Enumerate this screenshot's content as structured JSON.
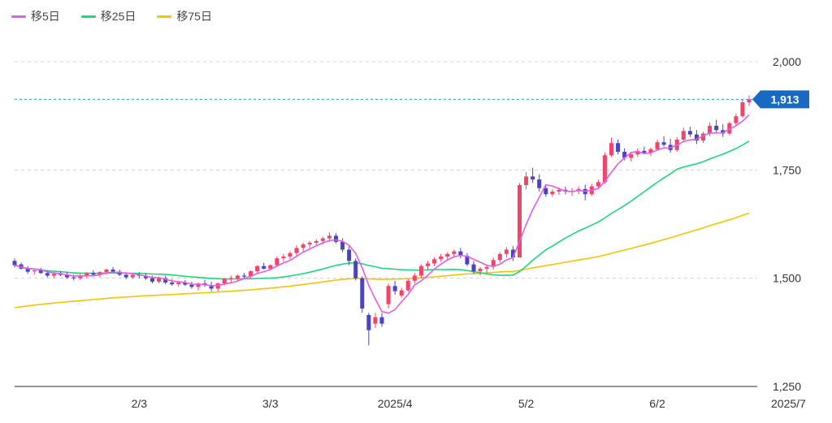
{
  "legend": [
    {
      "label": "移5日",
      "color": "#e55ce6"
    },
    {
      "label": "移25日",
      "color": "#1dd67a"
    },
    {
      "label": "移75日",
      "color": "#f3c500"
    }
  ],
  "chart_data": {
    "type": "candlestick",
    "title": "",
    "y_ticks": [
      "2,000",
      "1,750",
      "1,500",
      "1,250"
    ],
    "y_tick_values": [
      2000,
      1750,
      1500,
      1250
    ],
    "ylim": [
      1250,
      2000
    ],
    "x_tick_labels": [
      "2/3",
      "3/3",
      "2025/4",
      "5/2",
      "6/2",
      "2025/7"
    ],
    "x_tick_index": [
      19,
      39,
      58,
      78,
      98,
      118
    ],
    "last_price": 1913,
    "last_price_label": "1,913",
    "colors": {
      "up": "#f0446a",
      "down": "#4b43c5",
      "ma5": "#e55ce6",
      "ma25": "#1dd67a",
      "ma75": "#f3c500",
      "price_line": "#3a8dd0",
      "price_badge": "#1769c2"
    },
    "candles": [
      [
        1540,
        1545,
        1525,
        1530
      ],
      [
        1532,
        1536,
        1520,
        1522
      ],
      [
        1522,
        1528,
        1510,
        1515
      ],
      [
        1516,
        1522,
        1508,
        1518
      ],
      [
        1518,
        1524,
        1510,
        1512
      ],
      [
        1512,
        1518,
        1502,
        1506
      ],
      [
        1506,
        1514,
        1500,
        1510
      ],
      [
        1510,
        1516,
        1505,
        1508
      ],
      [
        1508,
        1514,
        1498,
        1502
      ],
      [
        1502,
        1508,
        1495,
        1500
      ],
      [
        1500,
        1510,
        1496,
        1506
      ],
      [
        1506,
        1514,
        1500,
        1512
      ],
      [
        1512,
        1518,
        1505,
        1508
      ],
      [
        1508,
        1516,
        1502,
        1514
      ],
      [
        1514,
        1522,
        1508,
        1520
      ],
      [
        1520,
        1526,
        1512,
        1515
      ],
      [
        1515,
        1520,
        1505,
        1508
      ],
      [
        1508,
        1514,
        1498,
        1502
      ],
      [
        1502,
        1512,
        1498,
        1508
      ],
      [
        1508,
        1514,
        1500,
        1506
      ],
      [
        1506,
        1512,
        1496,
        1500
      ],
      [
        1500,
        1506,
        1488,
        1492
      ],
      [
        1492,
        1504,
        1488,
        1500
      ],
      [
        1500,
        1506,
        1486,
        1490
      ],
      [
        1490,
        1498,
        1482,
        1486
      ],
      [
        1486,
        1494,
        1480,
        1490
      ],
      [
        1490,
        1496,
        1482,
        1485
      ],
      [
        1485,
        1492,
        1476,
        1480
      ],
      [
        1480,
        1490,
        1472,
        1488
      ],
      [
        1488,
        1496,
        1480,
        1484
      ],
      [
        1484,
        1492,
        1470,
        1476
      ],
      [
        1476,
        1490,
        1470,
        1488
      ],
      [
        1488,
        1500,
        1484,
        1498
      ],
      [
        1498,
        1506,
        1490,
        1500
      ],
      [
        1500,
        1508,
        1494,
        1506
      ],
      [
        1506,
        1512,
        1498,
        1504
      ],
      [
        1504,
        1518,
        1500,
        1516
      ],
      [
        1516,
        1530,
        1512,
        1528
      ],
      [
        1528,
        1536,
        1520,
        1522
      ],
      [
        1522,
        1532,
        1518,
        1530
      ],
      [
        1530,
        1550,
        1526,
        1546
      ],
      [
        1546,
        1556,
        1538,
        1550
      ],
      [
        1550,
        1562,
        1544,
        1558
      ],
      [
        1558,
        1576,
        1552,
        1570
      ],
      [
        1570,
        1582,
        1562,
        1578
      ],
      [
        1578,
        1586,
        1570,
        1582
      ],
      [
        1582,
        1590,
        1574,
        1586
      ],
      [
        1586,
        1596,
        1578,
        1592
      ],
      [
        1592,
        1606,
        1584,
        1598
      ],
      [
        1598,
        1604,
        1580,
        1584
      ],
      [
        1584,
        1592,
        1560,
        1566
      ],
      [
        1566,
        1574,
        1530,
        1540
      ],
      [
        1540,
        1546,
        1495,
        1500
      ],
      [
        1500,
        1505,
        1420,
        1430
      ],
      [
        1415,
        1420,
        1345,
        1380
      ],
      [
        1395,
        1420,
        1385,
        1410
      ],
      [
        1410,
        1420,
        1388,
        1395
      ],
      [
        1440,
        1488,
        1430,
        1482
      ],
      [
        1482,
        1494,
        1462,
        1470
      ],
      [
        1460,
        1478,
        1455,
        1472
      ],
      [
        1472,
        1498,
        1468,
        1494
      ],
      [
        1494,
        1512,
        1488,
        1506
      ],
      [
        1506,
        1532,
        1500,
        1528
      ],
      [
        1528,
        1540,
        1520,
        1534
      ],
      [
        1534,
        1548,
        1528,
        1544
      ],
      [
        1544,
        1556,
        1538,
        1550
      ],
      [
        1550,
        1560,
        1540,
        1556
      ],
      [
        1556,
        1566,
        1548,
        1562
      ],
      [
        1562,
        1570,
        1546,
        1552
      ],
      [
        1552,
        1558,
        1528,
        1532
      ],
      [
        1532,
        1540,
        1510,
        1516
      ],
      [
        1516,
        1526,
        1506,
        1522
      ],
      [
        1522,
        1532,
        1512,
        1526
      ],
      [
        1526,
        1548,
        1520,
        1542
      ],
      [
        1542,
        1560,
        1536,
        1556
      ],
      [
        1556,
        1572,
        1548,
        1566
      ],
      [
        1566,
        1574,
        1540,
        1548
      ],
      [
        1548,
        1720,
        1548,
        1715
      ],
      [
        1715,
        1745,
        1705,
        1735
      ],
      [
        1735,
        1755,
        1720,
        1728
      ],
      [
        1728,
        1740,
        1700,
        1708
      ],
      [
        1708,
        1716,
        1688,
        1694
      ],
      [
        1694,
        1706,
        1688,
        1700
      ],
      [
        1700,
        1710,
        1692,
        1704
      ],
      [
        1704,
        1712,
        1694,
        1700
      ],
      [
        1700,
        1708,
        1690,
        1702
      ],
      [
        1702,
        1712,
        1694,
        1706
      ],
      [
        1706,
        1716,
        1680,
        1694
      ],
      [
        1694,
        1718,
        1690,
        1712
      ],
      [
        1712,
        1728,
        1708,
        1722
      ],
      [
        1722,
        1790,
        1718,
        1784
      ],
      [
        1784,
        1825,
        1780,
        1812
      ],
      [
        1812,
        1820,
        1786,
        1792
      ],
      [
        1792,
        1800,
        1772,
        1778
      ],
      [
        1778,
        1792,
        1770,
        1786
      ],
      [
        1786,
        1800,
        1780,
        1794
      ],
      [
        1794,
        1804,
        1786,
        1790
      ],
      [
        1790,
        1802,
        1782,
        1798
      ],
      [
        1798,
        1820,
        1794,
        1814
      ],
      [
        1814,
        1828,
        1804,
        1808
      ],
      [
        1808,
        1822,
        1790,
        1796
      ],
      [
        1796,
        1826,
        1792,
        1820
      ],
      [
        1820,
        1848,
        1814,
        1840
      ],
      [
        1840,
        1850,
        1826,
        1832
      ],
      [
        1832,
        1842,
        1810,
        1818
      ],
      [
        1818,
        1838,
        1812,
        1834
      ],
      [
        1834,
        1860,
        1828,
        1852
      ],
      [
        1852,
        1866,
        1836,
        1842
      ],
      [
        1842,
        1856,
        1826,
        1834
      ],
      [
        1834,
        1862,
        1830,
        1858
      ],
      [
        1858,
        1880,
        1852,
        1874
      ],
      [
        1874,
        1912,
        1870,
        1906
      ],
      [
        1906,
        1922,
        1898,
        1913
      ]
    ]
  }
}
